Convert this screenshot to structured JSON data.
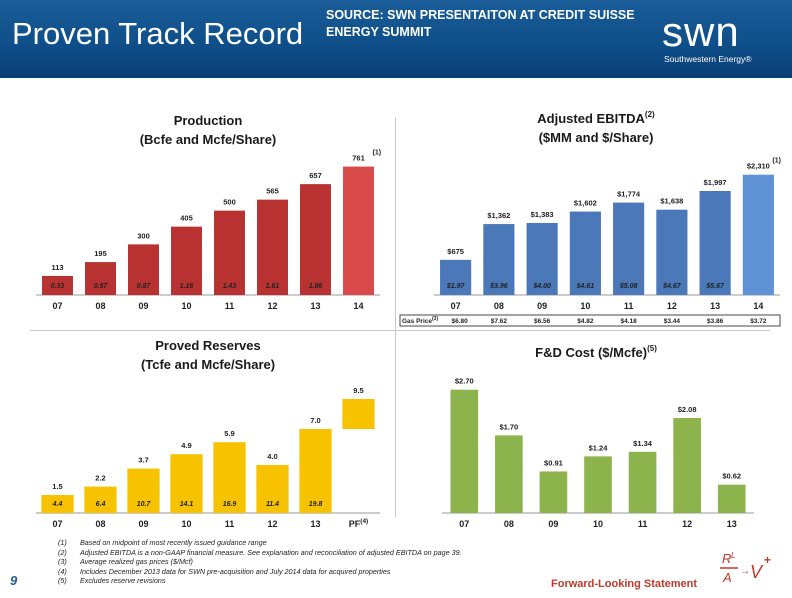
{
  "header": {
    "title": "Proven Track Record",
    "source": "SOURCE: SWN PRESENTAITON AT CREDIT SUISSE ENERGY SUMMIT",
    "logo": {
      "main": "swn",
      "sub": "Southwestern Energy®"
    }
  },
  "chart_data": [
    {
      "id": "production",
      "type": "bar",
      "title_line1": "Production",
      "title_line2": "(Bcfe and Mcfe/Share)",
      "categories": [
        "07",
        "08",
        "09",
        "10",
        "11",
        "12",
        "13",
        "14"
      ],
      "values": [
        113,
        195,
        300,
        405,
        500,
        565,
        657,
        761
      ],
      "value_labels": [
        "113",
        "195",
        "300",
        "405",
        "500",
        "565",
        "657",
        "761"
      ],
      "inner_labels": [
        "0.33",
        "0.57",
        "0.87",
        "1.16",
        "1.43",
        "1.61",
        "1.86",
        ""
      ],
      "top_note": "(1)",
      "color": "#b83232",
      "last_bar_color": "#d94a4a",
      "ylim": [
        0,
        800
      ]
    },
    {
      "id": "ebitda",
      "type": "bar",
      "title_line1": "Adjusted EBITDA",
      "title_sup": "(2)",
      "title_line2": "($MM and $/Share)",
      "categories": [
        "07",
        "08",
        "09",
        "10",
        "11",
        "12",
        "13",
        "14"
      ],
      "values": [
        675,
        1362,
        1383,
        1602,
        1774,
        1638,
        1997,
        2310
      ],
      "value_labels": [
        "$675",
        "$1,362",
        "$1,383",
        "$1,602",
        "$1,774",
        "$1,638",
        "$1,997",
        "$2,310"
      ],
      "inner_labels": [
        "$1.97",
        "$3.96",
        "$4.00",
        "$4.61",
        "$5.08",
        "$4.67",
        "$5.67",
        ""
      ],
      "top_note": "(1)",
      "color": "#4a78b8",
      "last_bar_color": "#5f93d6",
      "ylim": [
        0,
        2400
      ],
      "gas_price_label": "Gas Price",
      "gas_price_sup": "(3)",
      "gas_prices": [
        "$6.80",
        "$7.62",
        "$6.56",
        "$4.82",
        "$4.18",
        "$3.44",
        "$3.86",
        "$3.72"
      ]
    },
    {
      "id": "reserves",
      "type": "bar",
      "title_line1": "Proved Reserves",
      "title_line2": "(Tcfe and Mcfe/Share)",
      "categories": [
        "07",
        "08",
        "09",
        "10",
        "11",
        "12",
        "13",
        "PF"
      ],
      "pf_note": "(4)",
      "values": [
        1.5,
        2.2,
        3.7,
        4.9,
        5.9,
        4.0,
        7.0,
        9.5
      ],
      "value_labels": [
        "1.5",
        "2.2",
        "3.7",
        "4.9",
        "5.9",
        "4.0",
        "7.0",
        "9.5"
      ],
      "inner_labels": [
        "4.4",
        "6.4",
        "10.7",
        "14.1",
        "16.9",
        "11.4",
        "19.8",
        ""
      ],
      "color": "#f7c200",
      "ylim": [
        0,
        10
      ]
    },
    {
      "id": "fd_cost",
      "type": "bar",
      "title_line1": "F&D Cost ($/Mcfe)",
      "title_sup": "(5)",
      "categories": [
        "07",
        "08",
        "09",
        "10",
        "11",
        "12",
        "13"
      ],
      "values": [
        2.7,
        1.7,
        0.91,
        1.24,
        1.34,
        2.08,
        0.62
      ],
      "value_labels": [
        "$2.70",
        "$1.70",
        "$0.91",
        "$1.24",
        "$1.34",
        "$2.08",
        "$0.62"
      ],
      "color": "#8db44c",
      "ylim": [
        0,
        3
      ]
    }
  ],
  "footnotes": [
    {
      "num": "(1)",
      "text": "Based on midpoint of most recently issued guidance range"
    },
    {
      "num": "(2)",
      "text": "Adjusted EBITDA is a non-GAAP financial measure. See explanation and reconciliation of adjusted EBITDA on page 39."
    },
    {
      "num": "(3)",
      "text": "Average realized gas prices ($/Mcf)"
    },
    {
      "num": "(4)",
      "text": "Includes December 2013 data for SWN pre-acquisition and July 2014 data for acquired properties"
    },
    {
      "num": "(5)",
      "text": "Excludes reserve revisions"
    }
  ],
  "footer": {
    "page_number": "9",
    "forward_looking": "Forward-Looking Statement",
    "formula_icon": "formula-icon"
  }
}
